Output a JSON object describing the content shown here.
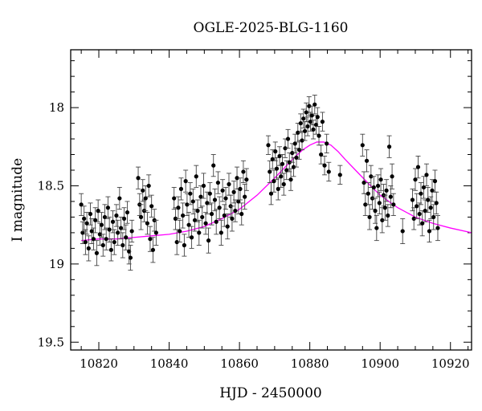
{
  "chart_data": {
    "type": "scatter",
    "title": "OGLE-2025-BLG-1160",
    "xlabel": "HJD - 2450000",
    "ylabel": "I magnitude",
    "xlim": [
      10812,
      10926
    ],
    "ylim": [
      19.55,
      17.63
    ],
    "y_inverted": true,
    "x_ticks": [
      10820,
      10840,
      10860,
      10880,
      10900,
      10920
    ],
    "y_ticks": [
      18,
      18.5,
      19,
      19.5
    ],
    "x_tick_labels": [
      "10820",
      "10840",
      "10860",
      "10880",
      "10900",
      "10920"
    ],
    "y_tick_labels": [
      "18",
      "18.5",
      "19",
      "19.5"
    ],
    "grid": false,
    "legend": "none",
    "series": [
      {
        "kind": "data-with-errorbars",
        "color": "#000000",
        "points": [
          [
            10815.0,
            18.62,
            0.07
          ],
          [
            10815.4,
            18.8,
            0.07
          ],
          [
            10815.8,
            18.71,
            0.08
          ],
          [
            10816.2,
            18.86,
            0.08
          ],
          [
            10816.6,
            18.74,
            0.07
          ],
          [
            10817.1,
            18.9,
            0.08
          ],
          [
            10817.6,
            18.68,
            0.07
          ],
          [
            10818.0,
            18.79,
            0.08
          ],
          [
            10818.5,
            18.84,
            0.07
          ],
          [
            10819.0,
            18.72,
            0.08
          ],
          [
            10819.4,
            18.93,
            0.08
          ],
          [
            10819.8,
            18.66,
            0.07
          ],
          [
            10820.3,
            18.81,
            0.07
          ],
          [
            10820.8,
            18.75,
            0.08
          ],
          [
            10821.2,
            18.88,
            0.07
          ],
          [
            10821.7,
            18.7,
            0.08
          ],
          [
            10822.1,
            18.84,
            0.07
          ],
          [
            10822.6,
            18.64,
            0.07
          ],
          [
            10823.0,
            18.78,
            0.08
          ],
          [
            10823.5,
            18.91,
            0.07
          ],
          [
            10824.0,
            18.73,
            0.07
          ],
          [
            10824.4,
            18.86,
            0.08
          ],
          [
            10825.0,
            18.69,
            0.07
          ],
          [
            10825.4,
            18.8,
            0.08
          ],
          [
            10825.9,
            18.58,
            0.07
          ],
          [
            10826.3,
            18.77,
            0.07
          ],
          [
            10826.8,
            18.88,
            0.08
          ],
          [
            10827.2,
            18.71,
            0.07
          ],
          [
            10827.7,
            18.83,
            0.08
          ],
          [
            10828.1,
            18.67,
            0.07
          ],
          [
            10828.6,
            18.92,
            0.08
          ],
          [
            10829.0,
            18.96,
            0.08
          ],
          [
            10829.4,
            18.79,
            0.07
          ],
          [
            10831.2,
            18.45,
            0.07
          ],
          [
            10831.6,
            18.62,
            0.07
          ],
          [
            10832.0,
            18.7,
            0.08
          ],
          [
            10832.5,
            18.53,
            0.07
          ],
          [
            10832.9,
            18.66,
            0.07
          ],
          [
            10833.3,
            18.58,
            0.08
          ],
          [
            10833.8,
            18.74,
            0.07
          ],
          [
            10834.2,
            18.5,
            0.07
          ],
          [
            10834.6,
            18.84,
            0.08
          ],
          [
            10835.0,
            18.63,
            0.07
          ],
          [
            10835.4,
            18.91,
            0.08
          ],
          [
            10835.8,
            18.72,
            0.07
          ],
          [
            10836.3,
            18.8,
            0.08
          ],
          [
            10841.4,
            18.58,
            0.07
          ],
          [
            10841.8,
            18.71,
            0.07
          ],
          [
            10842.2,
            18.86,
            0.08
          ],
          [
            10842.6,
            18.64,
            0.07
          ],
          [
            10843.0,
            18.79,
            0.07
          ],
          [
            10843.4,
            18.52,
            0.07
          ],
          [
            10843.9,
            18.69,
            0.08
          ],
          [
            10844.3,
            18.88,
            0.07
          ],
          [
            10844.7,
            18.47,
            0.07
          ],
          [
            10845.1,
            18.62,
            0.07
          ],
          [
            10845.6,
            18.75,
            0.08
          ],
          [
            10846.0,
            18.55,
            0.07
          ],
          [
            10846.4,
            18.83,
            0.07
          ],
          [
            10846.8,
            18.6,
            0.08
          ],
          [
            10847.3,
            18.72,
            0.07
          ],
          [
            10847.7,
            18.44,
            0.07
          ],
          [
            10848.1,
            18.66,
            0.07
          ],
          [
            10848.5,
            18.8,
            0.08
          ],
          [
            10849.0,
            18.57,
            0.07
          ],
          [
            10849.4,
            18.7,
            0.07
          ],
          [
            10849.8,
            18.5,
            0.08
          ],
          [
            10850.4,
            18.74,
            0.07
          ],
          [
            10850.8,
            18.61,
            0.07
          ],
          [
            10851.2,
            18.85,
            0.08
          ],
          [
            10851.6,
            18.55,
            0.07
          ],
          [
            10852.1,
            18.68,
            0.07
          ],
          [
            10852.6,
            18.37,
            0.07
          ],
          [
            10853.0,
            18.59,
            0.07
          ],
          [
            10853.4,
            18.73,
            0.08
          ],
          [
            10853.9,
            18.48,
            0.07
          ],
          [
            10854.3,
            18.64,
            0.07
          ],
          [
            10854.8,
            18.8,
            0.08
          ],
          [
            10855.2,
            18.53,
            0.07
          ],
          [
            10855.7,
            18.69,
            0.07
          ],
          [
            10856.1,
            18.58,
            0.07
          ],
          [
            10856.6,
            18.76,
            0.08
          ],
          [
            10857.0,
            18.49,
            0.07
          ],
          [
            10857.5,
            18.63,
            0.07
          ],
          [
            10857.9,
            18.71,
            0.08
          ],
          [
            10858.4,
            18.54,
            0.07
          ],
          [
            10858.8,
            18.66,
            0.07
          ],
          [
            10859.3,
            18.45,
            0.07
          ],
          [
            10859.7,
            18.6,
            0.08
          ],
          [
            10860.2,
            18.52,
            0.07
          ],
          [
            10860.6,
            18.68,
            0.07
          ],
          [
            10861.1,
            18.41,
            0.07
          ],
          [
            10861.5,
            18.57,
            0.08
          ],
          [
            10862.0,
            18.46,
            0.07
          ],
          [
            10868.2,
            18.24,
            0.06
          ],
          [
            10868.6,
            18.41,
            0.07
          ],
          [
            10869.0,
            18.55,
            0.07
          ],
          [
            10869.4,
            18.33,
            0.06
          ],
          [
            10869.8,
            18.47,
            0.07
          ],
          [
            10870.2,
            18.28,
            0.06
          ],
          [
            10870.6,
            18.39,
            0.07
          ],
          [
            10871.0,
            18.52,
            0.07
          ],
          [
            10871.4,
            18.31,
            0.06
          ],
          [
            10871.8,
            18.44,
            0.07
          ],
          [
            10872.2,
            18.36,
            0.06
          ],
          [
            10872.6,
            18.49,
            0.07
          ],
          [
            10873.0,
            18.26,
            0.06
          ],
          [
            10873.4,
            18.4,
            0.06
          ],
          [
            10873.8,
            18.2,
            0.06
          ],
          [
            10874.2,
            18.35,
            0.06
          ],
          [
            10874.6,
            18.46,
            0.07
          ],
          [
            10875.0,
            18.29,
            0.06
          ],
          [
            10875.4,
            18.38,
            0.06
          ],
          [
            10875.8,
            18.23,
            0.06
          ],
          [
            10876.2,
            18.32,
            0.06
          ],
          [
            10876.6,
            18.16,
            0.06
          ],
          [
            10877.0,
            18.27,
            0.06
          ],
          [
            10877.4,
            18.1,
            0.06
          ],
          [
            10877.8,
            18.21,
            0.06
          ],
          [
            10878.2,
            18.07,
            0.06
          ],
          [
            10878.6,
            18.15,
            0.06
          ],
          [
            10879.0,
            18.03,
            0.06
          ],
          [
            10879.4,
            18.12,
            0.06
          ],
          [
            10879.8,
            17.99,
            0.06
          ],
          [
            10880.2,
            18.09,
            0.06
          ],
          [
            10880.6,
            18.05,
            0.06
          ],
          [
            10881.0,
            18.14,
            0.06
          ],
          [
            10881.4,
            17.98,
            0.06
          ],
          [
            10881.8,
            18.11,
            0.06
          ],
          [
            10882.2,
            18.06,
            0.06
          ],
          [
            10882.6,
            18.18,
            0.06
          ],
          [
            10883.2,
            18.3,
            0.06
          ],
          [
            10883.6,
            18.09,
            0.06
          ],
          [
            10884.2,
            18.37,
            0.06
          ],
          [
            10884.8,
            18.23,
            0.06
          ],
          [
            10885.4,
            18.41,
            0.06
          ],
          [
            10888.6,
            18.43,
            0.06
          ],
          [
            10895.0,
            18.24,
            0.07
          ],
          [
            10895.4,
            18.48,
            0.07
          ],
          [
            10895.8,
            18.62,
            0.07
          ],
          [
            10896.2,
            18.34,
            0.07
          ],
          [
            10896.6,
            18.55,
            0.07
          ],
          [
            10897.0,
            18.7,
            0.08
          ],
          [
            10897.4,
            18.44,
            0.07
          ],
          [
            10897.8,
            18.58,
            0.07
          ],
          [
            10898.2,
            18.51,
            0.07
          ],
          [
            10898.6,
            18.66,
            0.08
          ],
          [
            10899.0,
            18.77,
            0.08
          ],
          [
            10899.4,
            18.5,
            0.07
          ],
          [
            10899.8,
            18.61,
            0.07
          ],
          [
            10900.2,
            18.46,
            0.07
          ],
          [
            10900.6,
            18.72,
            0.08
          ],
          [
            10901.0,
            18.56,
            0.07
          ],
          [
            10901.4,
            18.64,
            0.08
          ],
          [
            10901.8,
            18.53,
            0.07
          ],
          [
            10902.2,
            18.69,
            0.07
          ],
          [
            10902.6,
            18.25,
            0.07
          ],
          [
            10903.0,
            18.57,
            0.07
          ],
          [
            10903.4,
            18.44,
            0.08
          ],
          [
            10903.8,
            18.62,
            0.07
          ],
          [
            10906.4,
            18.79,
            0.08
          ],
          [
            10909.2,
            18.59,
            0.07
          ],
          [
            10909.6,
            18.71,
            0.07
          ],
          [
            10910.0,
            18.46,
            0.07
          ],
          [
            10910.4,
            18.63,
            0.08
          ],
          [
            10910.8,
            18.38,
            0.07
          ],
          [
            10911.2,
            18.68,
            0.07
          ],
          [
            10911.6,
            18.55,
            0.07
          ],
          [
            10912.0,
            18.74,
            0.08
          ],
          [
            10912.4,
            18.51,
            0.07
          ],
          [
            10912.8,
            18.66,
            0.07
          ],
          [
            10913.2,
            18.43,
            0.07
          ],
          [
            10913.6,
            18.59,
            0.08
          ],
          [
            10914.0,
            18.79,
            0.07
          ],
          [
            10914.4,
            18.64,
            0.07
          ],
          [
            10914.8,
            18.53,
            0.07
          ],
          [
            10915.2,
            18.7,
            0.08
          ],
          [
            10915.6,
            18.47,
            0.07
          ],
          [
            10916.0,
            18.61,
            0.07
          ],
          [
            10916.4,
            18.77,
            0.08
          ]
        ]
      },
      {
        "kind": "model-curve",
        "color": "#ff00ff",
        "x": [
          10815,
          10820,
          10825,
          10830,
          10835,
          10840,
          10845,
          10850,
          10855,
          10860,
          10865,
          10870,
          10873,
          10876,
          10878,
          10880,
          10882,
          10883,
          10884,
          10886,
          10888,
          10890,
          10893,
          10896,
          10900,
          10905,
          10910,
          10915,
          10920,
          10926
        ],
        "y": [
          18.85,
          18.84,
          18.84,
          18.83,
          18.82,
          18.81,
          18.79,
          18.76,
          18.71,
          18.65,
          18.56,
          18.45,
          18.38,
          18.31,
          18.27,
          18.24,
          18.22,
          18.22,
          18.22,
          18.24,
          18.28,
          18.33,
          18.4,
          18.47,
          18.56,
          18.64,
          18.7,
          18.74,
          18.77,
          18.8
        ]
      }
    ]
  }
}
